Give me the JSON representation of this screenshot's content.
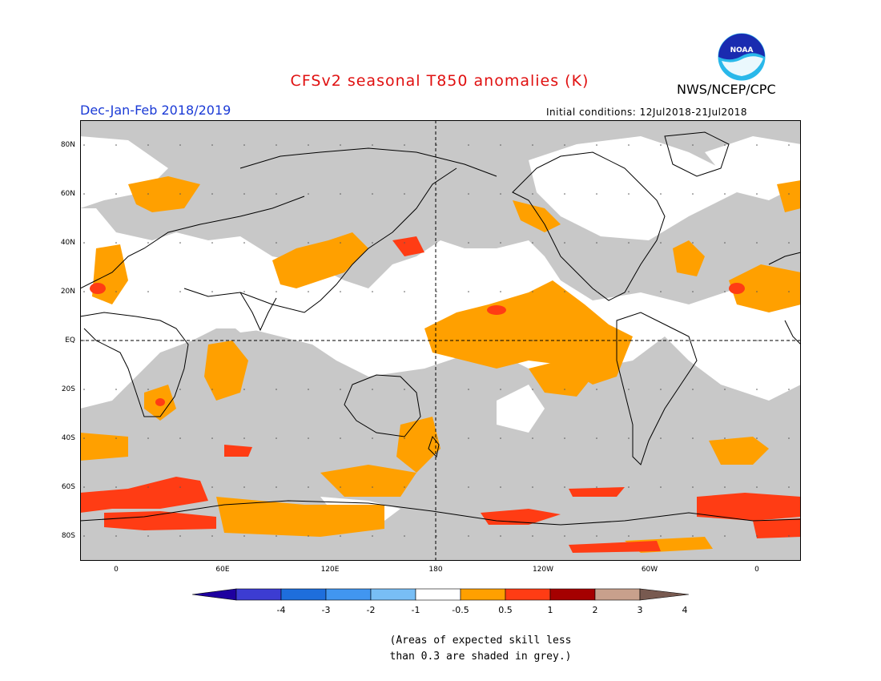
{
  "header": {
    "title": "CFSv2 seasonal T850 anomalies (K)",
    "org": "NWS/NCEP/CPC",
    "logo_text": "NOAA",
    "period": "Dec-Jan-Feb 2018/2019",
    "initial_conditions": "Initial conditions: 12Jul2018-21Jul2018"
  },
  "colors": {
    "title": "#e01010",
    "period": "#1a3ad6",
    "grey_skill": "#c8c8c8",
    "ocean_white": "#ffffff",
    "orange_05_1": "#ffa000",
    "red_1_2": "#ff3c14",
    "darkred_2_3": "#a50000"
  },
  "map": {
    "lat_labels": [
      "80N",
      "60N",
      "40N",
      "20N",
      "EQ",
      "20S",
      "40S",
      "60S",
      "80S"
    ],
    "lon_labels": [
      "0",
      "60E",
      "120E",
      "180",
      "120W",
      "60W",
      "0"
    ]
  },
  "colorbar": {
    "labels": [
      "-4",
      "-3",
      "-2",
      "-1",
      "-0.5",
      "0.5",
      "1",
      "2",
      "3",
      "4"
    ],
    "colors": [
      "#1e00a0",
      "#3c3cd2",
      "#1e6edc",
      "#4196f0",
      "#78bef5",
      "#ffffff",
      "#ffa000",
      "#ff3c14",
      "#a50000",
      "#c8a08c",
      "#785a50"
    ]
  },
  "note": {
    "line1": "(Areas of expected skill less",
    "line2": "than 0.3 are shaded in grey.)"
  }
}
